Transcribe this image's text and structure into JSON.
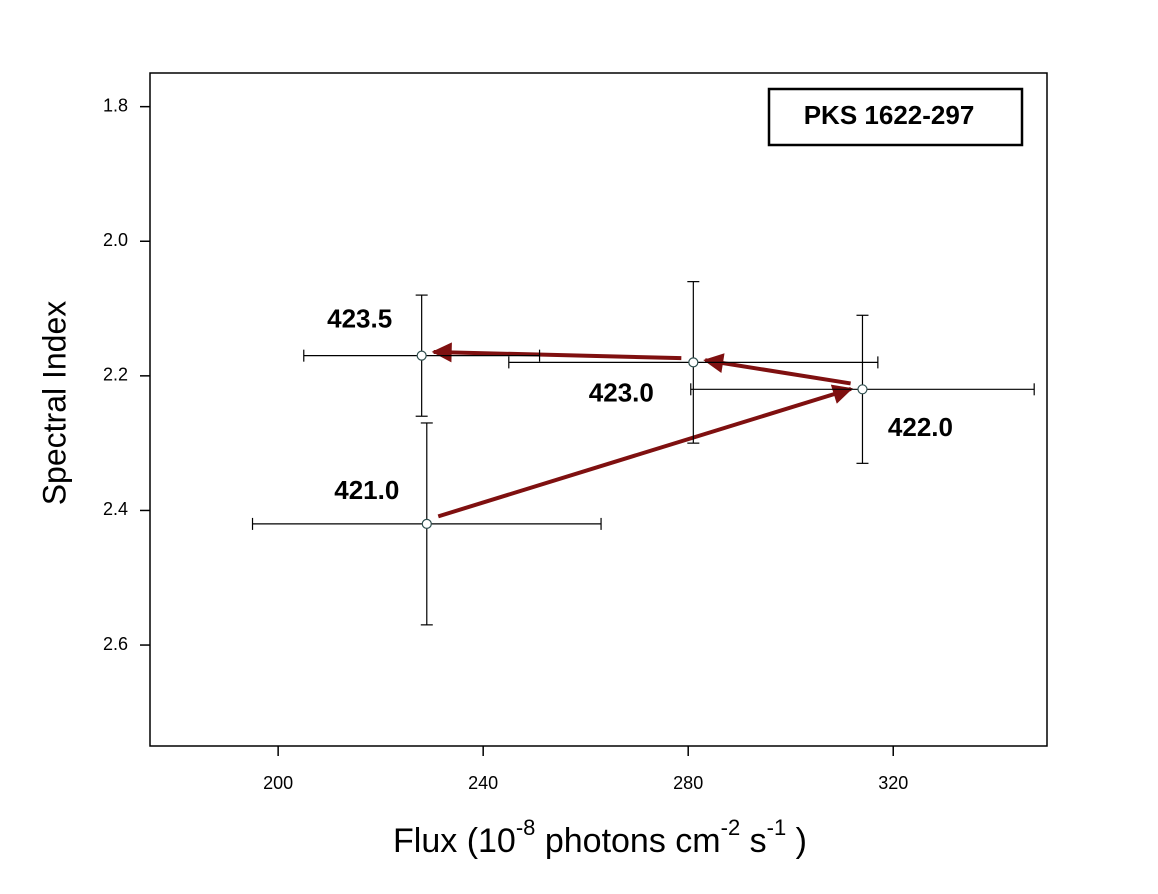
{
  "chart_data": {
    "type": "scatter",
    "annotation": "PKS 1622-297",
    "xlabel": [
      "Flux  (10",
      "-8",
      " photons  cm",
      "-2",
      " s",
      "-1",
      " )"
    ],
    "ylabel": "Spectral Index",
    "xlim": [
      175,
      350
    ],
    "ylim": [
      1.75,
      2.75
    ],
    "y_inverted": true,
    "xticks": [
      200,
      240,
      280,
      320
    ],
    "yticks": [
      1.8,
      {
        "value": 2,
        "label": "2.0"
      },
      2.2,
      2.4,
      2.6
    ],
    "series": [
      {
        "color": "#7f1010",
        "labels": [
          "421.0",
          "422.0",
          "423.0",
          "423.5"
        ],
        "x": [
          229,
          314,
          281,
          228
        ],
        "values": [
          2.42,
          2.22,
          2.18,
          2.17
        ],
        "xerr": [
          34,
          33.5,
          36,
          23
        ],
        "yerr": [
          0.15,
          0.11,
          0.12,
          0.09
        ]
      }
    ]
  }
}
